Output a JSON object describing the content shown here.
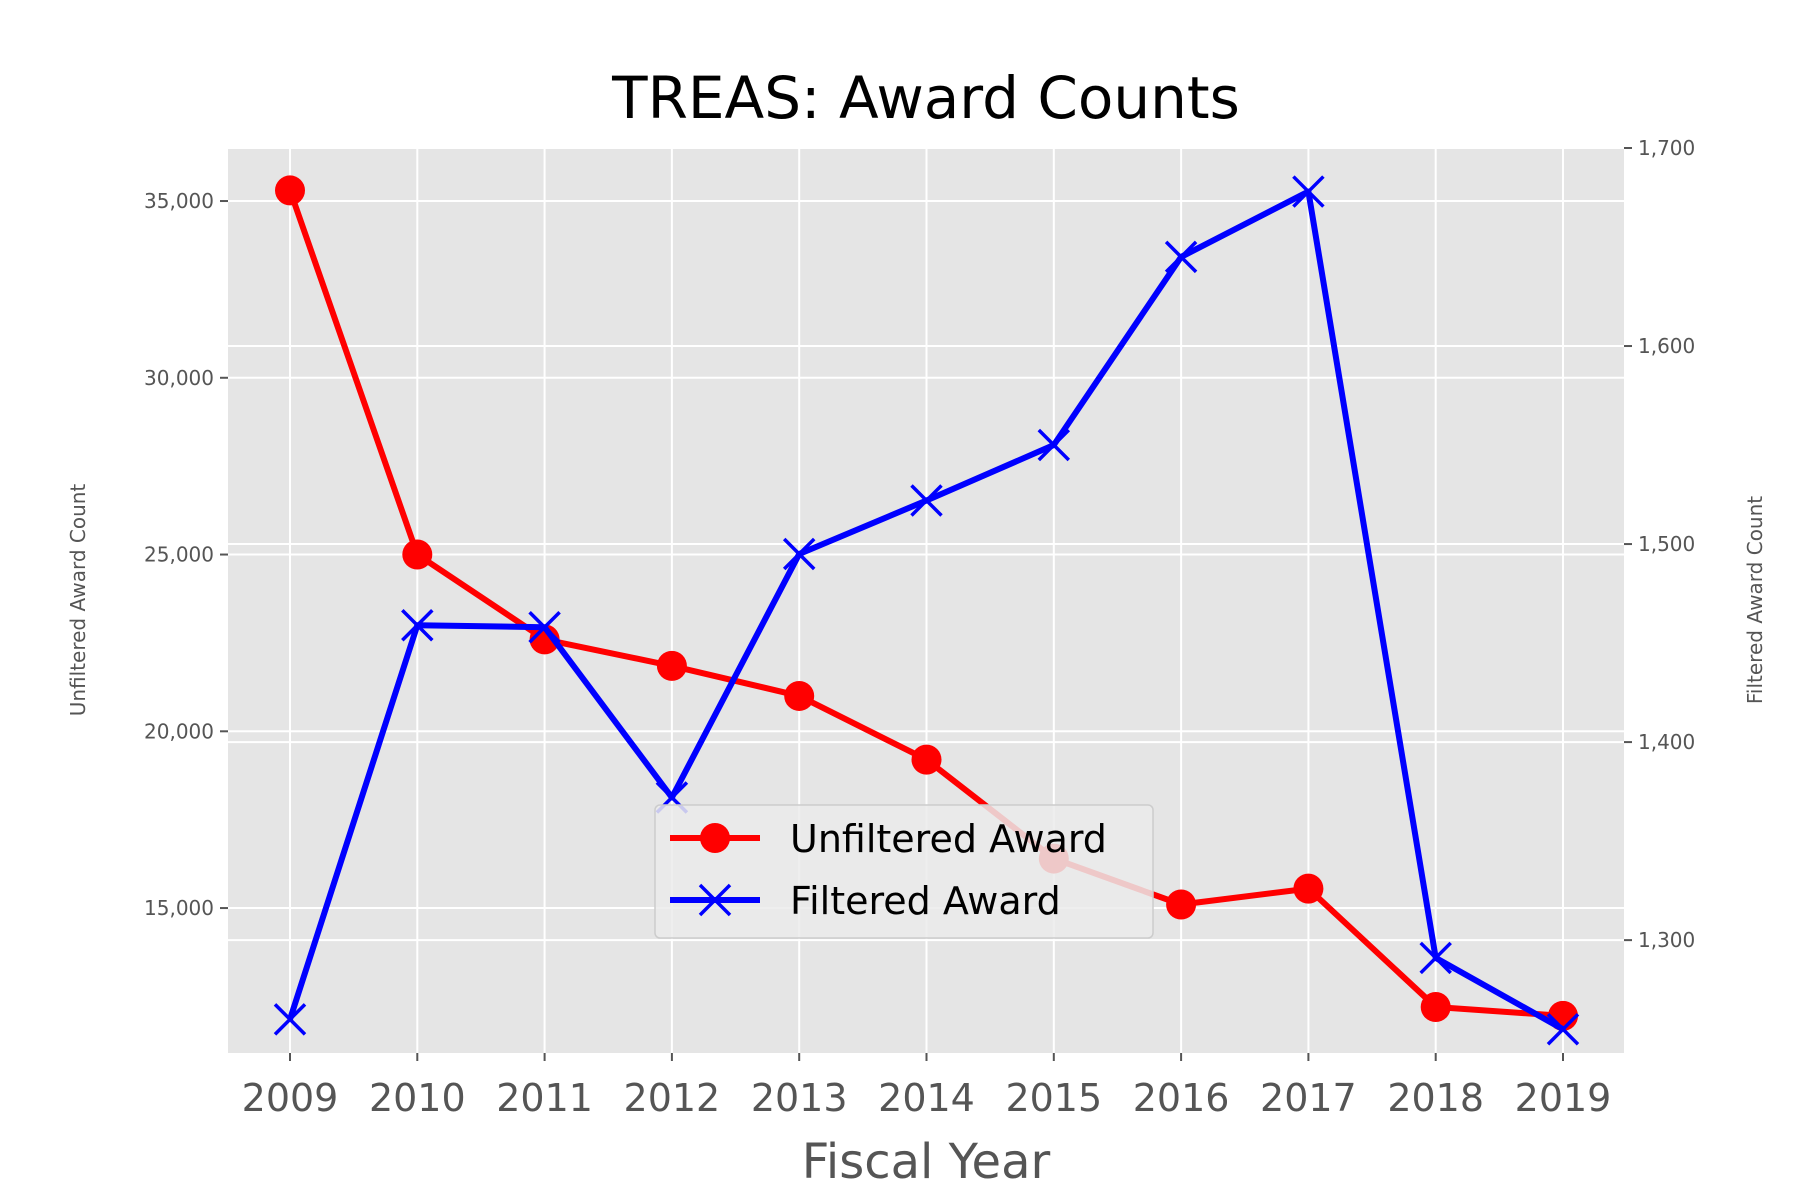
{
  "chart_data": {
    "type": "line",
    "title": "TREAS: Award Counts",
    "xlabel": "Fiscal Year",
    "ylabel_left": "Unfiltered Award Count",
    "ylabel_right": "Filtered Award Count",
    "categories": [
      "2009",
      "2010",
      "2011",
      "2012",
      "2013",
      "2014",
      "2015",
      "2016",
      "2017",
      "2018",
      "2019"
    ],
    "series": [
      {
        "name": "Unfiltered Award",
        "axis": "left",
        "color": "#ff0000",
        "marker": "circle",
        "values": [
          35300,
          25000,
          22600,
          21850,
          21000,
          19200,
          16400,
          15100,
          15550,
          12200,
          11950
        ]
      },
      {
        "name": "Filtered Award",
        "axis": "right",
        "color": "#0000ff",
        "marker": "x",
        "values": [
          1260,
          1459,
          1458,
          1372,
          1495,
          1522,
          1550,
          1645,
          1678,
          1291,
          1255
        ]
      }
    ],
    "ylim_left": [
      10900,
      36500
    ],
    "ylim_right": [
      1243,
      1700
    ],
    "yticks_left": [
      {
        "value": 15000,
        "label": "15,000"
      },
      {
        "value": 20000,
        "label": "20,000"
      },
      {
        "value": 25000,
        "label": "25,000"
      },
      {
        "value": 30000,
        "label": "30,000"
      },
      {
        "value": 35000,
        "label": "35,000"
      }
    ],
    "yticks_right": [
      {
        "value": 1300,
        "label": "1,300"
      },
      {
        "value": 1400,
        "label": "1,400"
      },
      {
        "value": 1500,
        "label": "1,500"
      },
      {
        "value": 1600,
        "label": "1,600"
      },
      {
        "value": 1700,
        "label": "1,700"
      }
    ],
    "grid": true,
    "legend_position": "lower-center",
    "style": {
      "background": "#e5e5e5",
      "grid_color": "#ffffff"
    }
  }
}
